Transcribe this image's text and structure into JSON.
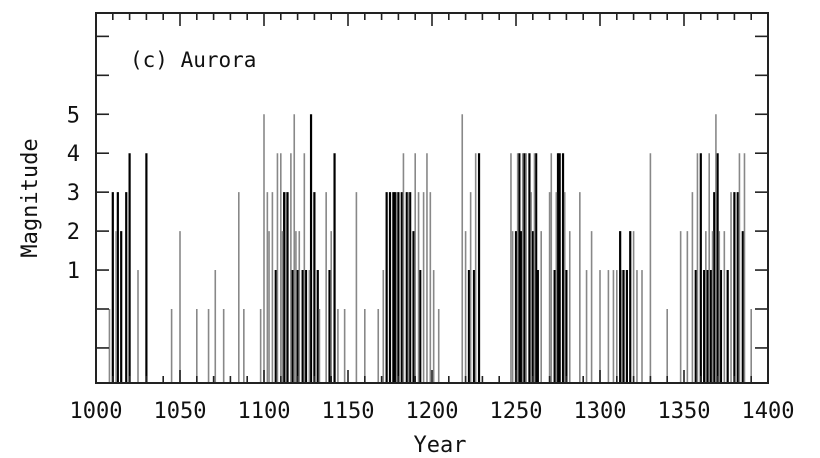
{
  "chart_data": {
    "type": "bar",
    "title": "",
    "panel_label": "(c) Aurora",
    "xlabel": "Year",
    "ylabel": "Magnitude",
    "xlim": [
      1000,
      1400
    ],
    "ylim": [
      -1.9,
      7.6
    ],
    "x_ticks": [
      1000,
      1050,
      1100,
      1150,
      1200,
      1250,
      1300,
      1350,
      1400
    ],
    "y_ticks": [
      1,
      2,
      3,
      4,
      5
    ],
    "grid": false,
    "legend": "none",
    "bar_baseline": -1.9,
    "series": [
      {
        "color": "#000000",
        "points": [
          [
            1010,
            3
          ],
          [
            1013,
            3
          ],
          [
            1015,
            2
          ],
          [
            1018,
            3
          ],
          [
            1020,
            4
          ],
          [
            1030,
            4
          ],
          [
            1107,
            1
          ],
          [
            1112,
            3
          ],
          [
            1114,
            3
          ],
          [
            1117,
            1
          ],
          [
            1120,
            1
          ],
          [
            1123,
            1
          ],
          [
            1125,
            1
          ],
          [
            1128,
            5
          ],
          [
            1130,
            3
          ],
          [
            1132,
            1
          ],
          [
            1139,
            1
          ],
          [
            1142,
            4
          ],
          [
            1173,
            3
          ],
          [
            1175,
            3
          ],
          [
            1177,
            3
          ],
          [
            1178,
            3
          ],
          [
            1180,
            3
          ],
          [
            1182,
            3
          ],
          [
            1185,
            3
          ],
          [
            1187,
            3
          ],
          [
            1189,
            2
          ],
          [
            1193,
            1
          ],
          [
            1222,
            1
          ],
          [
            1225,
            1
          ],
          [
            1228,
            4
          ],
          [
            1250,
            2
          ],
          [
            1252,
            4
          ],
          [
            1253,
            2
          ],
          [
            1255,
            4
          ],
          [
            1258,
            4
          ],
          [
            1260,
            2
          ],
          [
            1262,
            4
          ],
          [
            1263,
            1
          ],
          [
            1273,
            1
          ],
          [
            1275,
            4
          ],
          [
            1276,
            4
          ],
          [
            1278,
            4
          ],
          [
            1280,
            1
          ],
          [
            1312,
            2
          ],
          [
            1314,
            1
          ],
          [
            1316,
            1
          ],
          [
            1318,
            2
          ],
          [
            1357,
            1
          ],
          [
            1360,
            4
          ],
          [
            1362,
            1
          ],
          [
            1364,
            1
          ],
          [
            1366,
            1
          ],
          [
            1368,
            3
          ],
          [
            1370,
            4
          ],
          [
            1372,
            1
          ],
          [
            1376,
            1
          ],
          [
            1380,
            3
          ],
          [
            1382,
            3
          ],
          [
            1385,
            2
          ]
        ]
      },
      {
        "color": "#888888",
        "points": [
          [
            1008,
            0
          ],
          [
            1012,
            2
          ],
          [
            1025,
            1
          ],
          [
            1045,
            0
          ],
          [
            1050,
            2
          ],
          [
            1060,
            0
          ],
          [
            1067,
            0
          ],
          [
            1071,
            1
          ],
          [
            1076,
            0
          ],
          [
            1085,
            3
          ],
          [
            1088,
            0
          ],
          [
            1098,
            0
          ],
          [
            1100,
            5
          ],
          [
            1102,
            3
          ],
          [
            1103,
            2
          ],
          [
            1105,
            3
          ],
          [
            1108,
            4
          ],
          [
            1110,
            4
          ],
          [
            1111,
            2
          ],
          [
            1113,
            3
          ],
          [
            1116,
            4
          ],
          [
            1118,
            5
          ],
          [
            1119,
            2
          ],
          [
            1121,
            2
          ],
          [
            1124,
            4
          ],
          [
            1127,
            1
          ],
          [
            1133,
            0
          ],
          [
            1137,
            3
          ],
          [
            1140,
            2
          ],
          [
            1144,
            0
          ],
          [
            1148,
            0
          ],
          [
            1155,
            3
          ],
          [
            1160,
            0
          ],
          [
            1168,
            0
          ],
          [
            1171,
            1
          ],
          [
            1179,
            3
          ],
          [
            1183,
            4
          ],
          [
            1186,
            3
          ],
          [
            1190,
            4
          ],
          [
            1192,
            3
          ],
          [
            1195,
            3
          ],
          [
            1197,
            4
          ],
          [
            1199,
            3
          ],
          [
            1201,
            1
          ],
          [
            1204,
            0
          ],
          [
            1218,
            5
          ],
          [
            1220,
            2
          ],
          [
            1223,
            3
          ],
          [
            1226,
            4
          ],
          [
            1247,
            4
          ],
          [
            1248,
            2
          ],
          [
            1251,
            4
          ],
          [
            1254,
            4
          ],
          [
            1256,
            4
          ],
          [
            1259,
            3
          ],
          [
            1261,
            4
          ],
          [
            1265,
            2
          ],
          [
            1270,
            3
          ],
          [
            1271,
            4
          ],
          [
            1274,
            3
          ],
          [
            1279,
            3
          ],
          [
            1282,
            2
          ],
          [
            1288,
            3
          ],
          [
            1292,
            1
          ],
          [
            1295,
            2
          ],
          [
            1300,
            1
          ],
          [
            1305,
            1
          ],
          [
            1308,
            1
          ],
          [
            1310,
            1
          ],
          [
            1313,
            1
          ],
          [
            1320,
            2
          ],
          [
            1322,
            1
          ],
          [
            1325,
            1
          ],
          [
            1330,
            4
          ],
          [
            1340,
            0
          ],
          [
            1348,
            2
          ],
          [
            1352,
            2
          ],
          [
            1355,
            3
          ],
          [
            1358,
            4
          ],
          [
            1363,
            2
          ],
          [
            1365,
            4
          ],
          [
            1367,
            2
          ],
          [
            1369,
            5
          ],
          [
            1371,
            2
          ],
          [
            1374,
            2
          ],
          [
            1378,
            3
          ],
          [
            1383,
            4
          ],
          [
            1386,
            4
          ],
          [
            1390,
            0
          ]
        ]
      }
    ]
  }
}
